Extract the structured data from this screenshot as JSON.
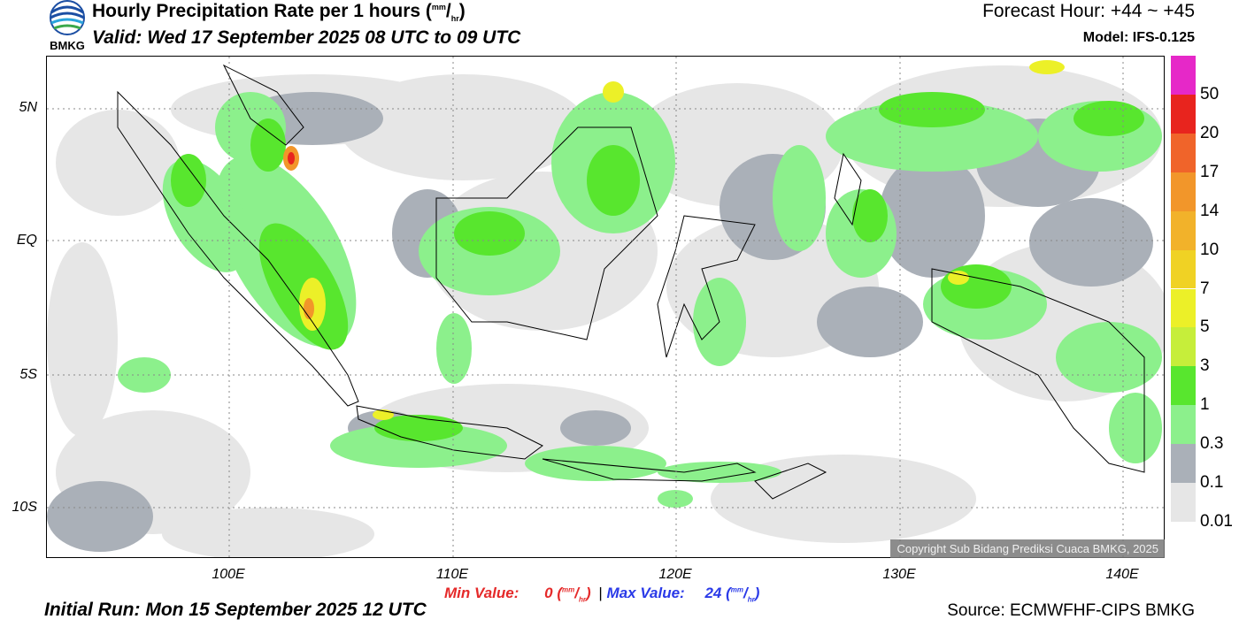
{
  "header": {
    "title_main": "Hourly Precipitation Rate per 1 hours (",
    "title_unit_num": "mm",
    "title_unit_den": "hr",
    "title_close": ")",
    "valid": "Valid: Wed 17 September 2025 08 UTC to 09 UTC",
    "forecast_hour": "Forecast Hour: +44 ~ +45",
    "model": "Model: IFS-0.125",
    "logo_text": "BMKG"
  },
  "map": {
    "lat_labels": [
      "5N",
      "EQ",
      "5S",
      "10S"
    ],
    "lon_labels": [
      "100E",
      "110E",
      "120E",
      "130E",
      "140E"
    ],
    "copyright": "Copyright Sub Bidang Prediksi Cuaca BMKG, 2025"
  },
  "colorbar": {
    "labels": [
      "50",
      "20",
      "17",
      "14",
      "10",
      "7",
      "5",
      "3",
      "1",
      "0.3",
      "0.1",
      "0.01"
    ],
    "colors": [
      "#e628c8",
      "#e8241e",
      "#f0642a",
      "#f2962a",
      "#f2b22a",
      "#f0d224",
      "#ecf028",
      "#c6ee3a",
      "#58e62e",
      "#8cf08c",
      "#aab0b8",
      "#e6e6e6"
    ]
  },
  "footer": {
    "min_label": "Min Value:",
    "min_value": "0",
    "max_label": "Max Value:",
    "max_value": "24",
    "unit_num": "mm",
    "unit_den": "hr",
    "separator": "|",
    "initial_run": "Initial Run: Mon 15 September 2025 12 UTC",
    "source": "Source: ECMWFHF-CIPS BMKG"
  }
}
